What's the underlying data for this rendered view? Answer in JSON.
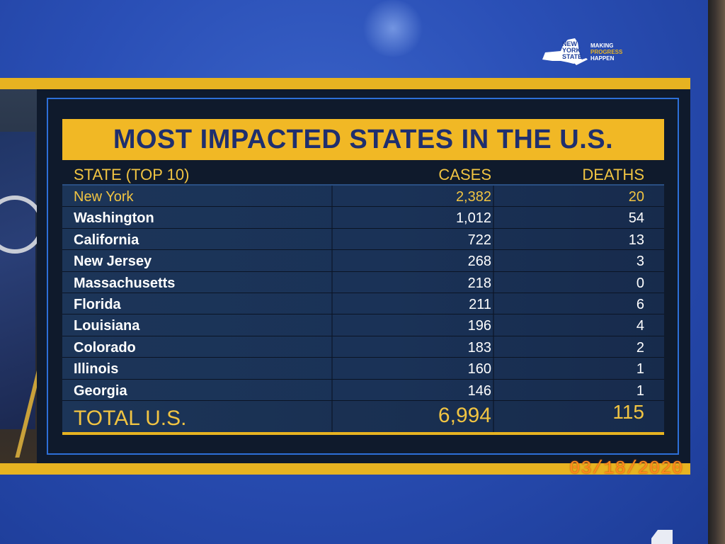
{
  "logo": {
    "state_text": [
      "NEW",
      "YORK",
      "STATE"
    ],
    "tagline": [
      "MAKING",
      "PROGRESS",
      "HAPPEN"
    ]
  },
  "title": "MOST IMPACTED STATES IN THE U.S.",
  "table": {
    "headers": {
      "state": "STATE (TOP 10)",
      "cases": "CASES",
      "deaths": "DEATHS"
    },
    "rows": [
      {
        "state": "New York",
        "cases": "2,382",
        "deaths": "20"
      },
      {
        "state": "Washington",
        "cases": "1,012",
        "deaths": "54"
      },
      {
        "state": "California",
        "cases": "722",
        "deaths": "13"
      },
      {
        "state": "New Jersey",
        "cases": "268",
        "deaths": "3"
      },
      {
        "state": "Massachusetts",
        "cases": "218",
        "deaths": "0"
      },
      {
        "state": "Florida",
        "cases": "211",
        "deaths": "6"
      },
      {
        "state": "Louisiana",
        "cases": "196",
        "deaths": "4"
      },
      {
        "state": "Colorado",
        "cases": "183",
        "deaths": "2"
      },
      {
        "state": "Illinois",
        "cases": "160",
        "deaths": "1"
      },
      {
        "state": "Georgia",
        "cases": "146",
        "deaths": "1"
      }
    ],
    "total": {
      "state": "TOTAL U.S.",
      "cases": "6,994",
      "deaths": "115"
    }
  },
  "date_stamp": "03/18/2020",
  "colors": {
    "background_blue": "#2a4fb6",
    "accent_gold": "#e7b321",
    "title_text": "#1f2f6e",
    "highlight_text": "#f1c442",
    "date_stamp": "#ff8a1e"
  }
}
